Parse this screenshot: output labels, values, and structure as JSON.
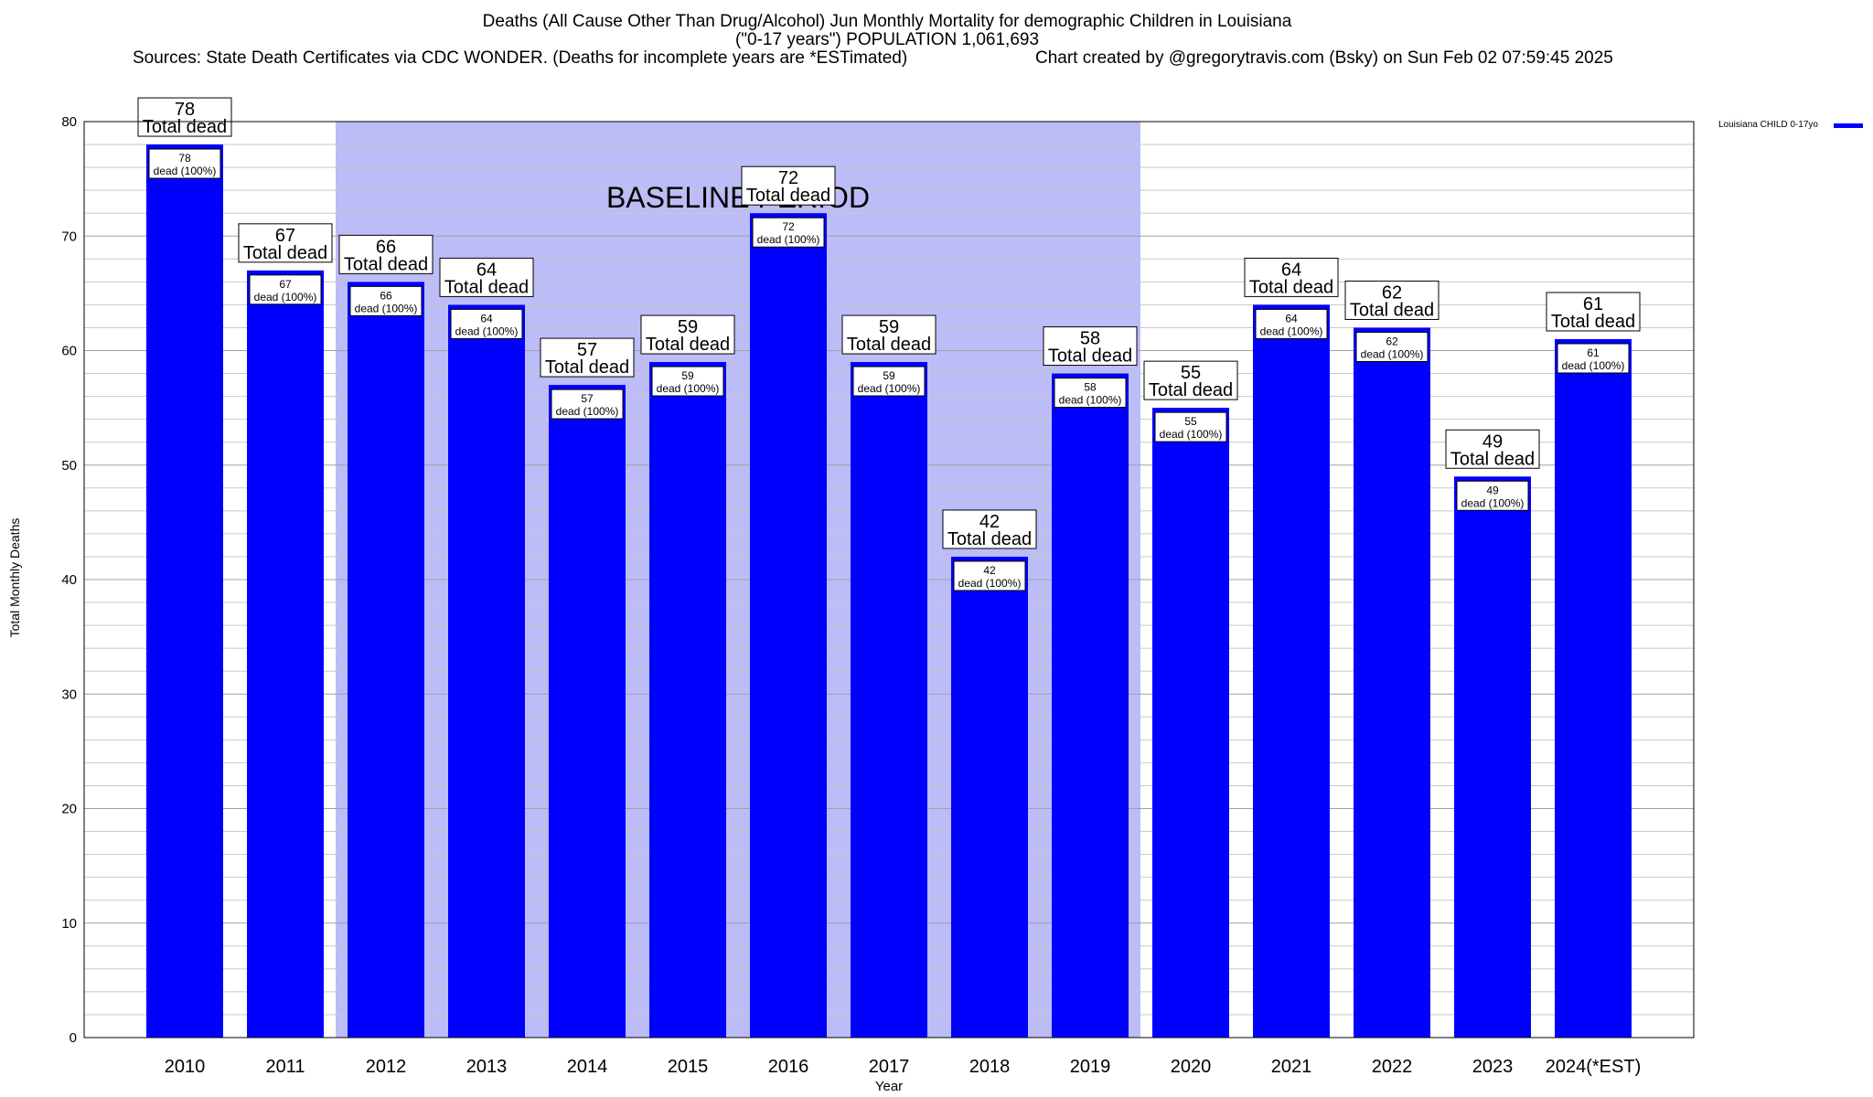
{
  "header": {
    "title_line1": "Deaths (All Cause Other Than Drug/Alcohol) Jun Monthly Mortality for demographic Children in Louisiana",
    "title_line2": "(\"0-17 years\") POPULATION 1,061,693",
    "sources": "Sources: State Death Certificates via CDC WONDER. (Deaths for incomplete years are *ESTimated)",
    "credit": "Chart created by @gregorytravis.com (Bsky) on Sun Feb 02 07:59:45 2025"
  },
  "chart_data": {
    "type": "bar",
    "xlabel": "Year",
    "ylabel": "Total Monthly Deaths",
    "ylim": [
      0,
      80
    ],
    "yticks": [
      0,
      10,
      20,
      30,
      40,
      50,
      60,
      70,
      80
    ],
    "minor_grid_step": 2,
    "grid": true,
    "categories": [
      "2010",
      "2011",
      "2012",
      "2013",
      "2014",
      "2015",
      "2016",
      "2017",
      "2018",
      "2019",
      "2020",
      "2021",
      "2022",
      "2023",
      "2024(*EST)"
    ],
    "series": [
      {
        "name": "Louisiana CHILD 0-17yo",
        "color": "#0000ff",
        "values": [
          78,
          67,
          66,
          64,
          57,
          59,
          72,
          59,
          42,
          58,
          55,
          64,
          62,
          49,
          61
        ]
      }
    ],
    "total_label": "Total dead",
    "inner_label": "dead (100%)",
    "baseline": {
      "label": "BASELINE PERIOD",
      "start": "2012",
      "end": "2019",
      "color": "#bcbcf7"
    },
    "legend_position": "top-right"
  }
}
